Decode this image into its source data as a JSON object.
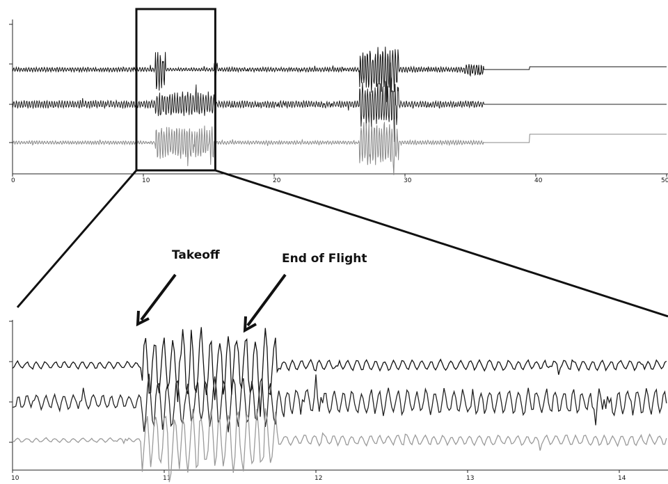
{
  "chart_data": [
    {
      "type": "line",
      "id": "overview",
      "x_ticks": [
        0,
        10,
        20,
        30,
        40,
        50
      ],
      "x_tick_labels": [
        "0",
        "10",
        "20",
        "30",
        "40",
        "50"
      ],
      "xlim": [
        0,
        50
      ],
      "grid": false,
      "series": [
        {
          "channel": 1,
          "color": "#111111",
          "segments": [
            {
              "x": [
                0,
                10.9
              ],
              "amplitude": 0.1
            },
            {
              "x": [
                10.9,
                11.7
              ],
              "amplitude": 0.95
            },
            {
              "x": [
                11.7,
                15.4
              ],
              "amplitude": 0.08
            },
            {
              "x": [
                15.4,
                15.7
              ],
              "amplitude": 0.35
            },
            {
              "x": [
                15.7,
                26.5
              ],
              "amplitude": 0.1
            },
            {
              "x": [
                26.5,
                29.5
              ],
              "amplitude": 1.0
            },
            {
              "x": [
                29.5,
                34.5
              ],
              "amplitude": 0.12
            },
            {
              "x": [
                34.5,
                36.0
              ],
              "amplitude": 0.3
            },
            {
              "x": [
                36.0,
                39.5
              ],
              "amplitude": 0.0
            },
            {
              "x": [
                39.5,
                50
              ],
              "amplitude": 0.0
            }
          ]
        },
        {
          "channel": 2,
          "color": "#222222",
          "segments": [
            {
              "x": [
                0,
                10.9
              ],
              "amplitude": 0.18
            },
            {
              "x": [
                10.9,
                15.4
              ],
              "amplitude": 0.55
            },
            {
              "x": [
                15.4,
                26.5
              ],
              "amplitude": 0.16
            },
            {
              "x": [
                26.5,
                29.5
              ],
              "amplitude": 1.0
            },
            {
              "x": [
                29.5,
                36.0
              ],
              "amplitude": 0.15
            },
            {
              "x": [
                36.0,
                50
              ],
              "amplitude": 0.0
            }
          ]
        },
        {
          "channel": 3,
          "color": "#888888",
          "segments": [
            {
              "x": [
                0,
                10.9
              ],
              "amplitude": 0.08
            },
            {
              "x": [
                10.9,
                15.4
              ],
              "amplitude": 0.75
            },
            {
              "x": [
                15.4,
                26.5
              ],
              "amplitude": 0.08
            },
            {
              "x": [
                26.5,
                29.5
              ],
              "amplitude": 1.0
            },
            {
              "x": [
                29.5,
                36.0
              ],
              "amplitude": 0.1
            },
            {
              "x": [
                36.0,
                50
              ],
              "amplitude": 0.0
            }
          ]
        }
      ],
      "zoom_box_x": [
        10,
        15.5
      ]
    },
    {
      "type": "line",
      "id": "zoomed",
      "x_ticks": [
        10,
        11,
        12,
        13,
        14
      ],
      "x_tick_labels": [
        "10",
        "11",
        "12",
        "13",
        "14"
      ],
      "xlim": [
        10,
        15
      ],
      "grid": false,
      "series": [
        {
          "channel": 1,
          "color": "#111111",
          "segments": [
            {
              "x": [
                10,
                10.85
              ],
              "amplitude": 0.1
            },
            {
              "x": [
                10.85,
                11.75
              ],
              "amplitude": 0.95
            },
            {
              "x": [
                11.75,
                15
              ],
              "amplitude": 0.14
            }
          ]
        },
        {
          "channel": 2,
          "color": "#222222",
          "segments": [
            {
              "x": [
                10,
                10.85
              ],
              "amplitude": 0.2
            },
            {
              "x": [
                10.85,
                11.75
              ],
              "amplitude": 0.75
            },
            {
              "x": [
                11.75,
                15
              ],
              "amplitude": 0.35
            }
          ]
        },
        {
          "channel": 3,
          "color": "#9a9a9a",
          "segments": [
            {
              "x": [
                10,
                10.85
              ],
              "amplitude": 0.06
            },
            {
              "x": [
                10.85,
                11.75
              ],
              "amplitude": 0.85
            },
            {
              "x": [
                11.75,
                15
              ],
              "amplitude": 0.14
            }
          ]
        }
      ],
      "annotations": [
        {
          "text": "Takeoff",
          "x": 10.95
        },
        {
          "text": "End of Flight",
          "x": 11.75
        }
      ]
    }
  ]
}
